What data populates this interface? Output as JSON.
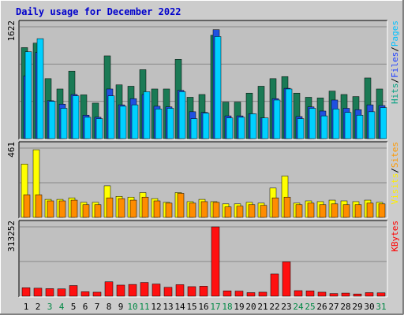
{
  "chart_data": {
    "type": "bar",
    "title": "Daily usage for December 2022",
    "categories": [
      "1",
      "2",
      "3",
      "4",
      "5",
      "6",
      "7",
      "8",
      "9",
      "10",
      "11",
      "12",
      "13",
      "14",
      "15",
      "16",
      "17",
      "18",
      "19",
      "20",
      "21",
      "22",
      "23",
      "24",
      "25",
      "26",
      "27",
      "28",
      "29",
      "30",
      "31"
    ],
    "weekend_days": [
      "3",
      "4",
      "10",
      "11",
      "17",
      "18",
      "24",
      "25",
      "31"
    ],
    "panels": [
      {
        "id": "top",
        "max_label": "1622",
        "ymax": 1622,
        "grid": true,
        "labels": [
          {
            "text": "Pages",
            "color": "#00c0ff"
          },
          {
            "text": "Files",
            "color": "#2040ff"
          },
          {
            "text": "Hits",
            "color": "#00a080"
          }
        ],
        "series": [
          {
            "name": "Hits",
            "color": "#1a7a55",
            "values": [
              1320,
              1385,
              870,
              720,
              980,
              635,
              515,
              1200,
              780,
              760,
              1000,
              720,
              720,
              1150,
              600,
              640,
              1500,
              530,
              530,
              660,
              760,
              870,
              900,
              660,
              600,
              590,
              690,
              640,
              610,
              880,
              720
            ]
          },
          {
            "name": "Files",
            "color": "#2050e0",
            "values": [
              910,
              1250,
              550,
              500,
              640,
              340,
              310,
              720,
              490,
              580,
              640,
              470,
              460,
              700,
              390,
              380,
              1580,
              330,
              330,
              360,
              300,
              580,
              730,
              320,
              460,
              400,
              560,
              440,
              420,
              490,
              480
            ]
          },
          {
            "name": "Pages",
            "color": "#00d0ff",
            "values": [
              1260,
              1450,
              540,
              440,
              620,
              310,
              290,
              620,
              470,
              490,
              680,
              430,
              440,
              680,
              290,
              370,
              1480,
              300,
              310,
              360,
              300,
              560,
              720,
              290,
              440,
              330,
              430,
              380,
              340,
              390,
              450
            ]
          }
        ]
      },
      {
        "id": "middle",
        "max_label": "461",
        "ymax": 461,
        "grid": true,
        "labels": [
          {
            "text": "Sites",
            "color": "#ff9900"
          },
          {
            "text": "Visits",
            "color": "#ffee00"
          }
        ],
        "series": [
          {
            "name": "Visits",
            "color": "#ffff00",
            "values": [
              355,
              450,
              120,
              120,
              130,
              100,
              100,
              210,
              140,
              135,
              165,
              125,
              100,
              165,
              105,
              120,
              105,
              90,
              90,
              100,
              95,
              195,
              275,
              95,
              110,
              105,
              115,
              110,
              105,
              115,
              100
            ]
          },
          {
            "name": "Sites",
            "color": "#ff8c00",
            "values": [
              150,
              150,
              110,
              110,
              115,
              85,
              85,
              130,
              125,
              115,
              135,
              110,
              95,
              160,
              95,
              105,
              100,
              70,
              75,
              85,
              80,
              130,
              135,
              85,
              95,
              85,
              90,
              85,
              85,
              95,
              90
            ]
          }
        ]
      },
      {
        "id": "bottom",
        "max_label": "313252",
        "ymax": 313252,
        "grid": true,
        "labels": [
          {
            "text": "KBytes",
            "color": "#ff0000"
          }
        ],
        "series": [
          {
            "name": "KBytes",
            "color": "#ff1010",
            "values": [
              38000,
              36000,
              34000,
              33000,
              48000,
              20000,
              18000,
              65000,
              50000,
              53000,
              62000,
              55000,
              40000,
              52000,
              43000,
              45000,
              313252,
              24000,
              23000,
              16000,
              18000,
              100000,
              155000,
              25000,
              24000,
              18000,
              12000,
              14000,
              10000,
              16000,
              15000
            ]
          }
        ]
      }
    ]
  }
}
